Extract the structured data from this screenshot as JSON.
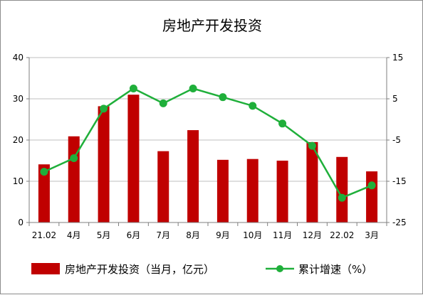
{
  "colors": {
    "bar": "#C00000",
    "line": "#1FAF3A",
    "grid": "#BFBFBF",
    "axis": "#7F7F7F"
  },
  "chart_data": {
    "type": "bar",
    "title": "房地产开发投资",
    "categories": [
      "21.02",
      "4月",
      "5月",
      "6月",
      "7月",
      "8月",
      "9月",
      "10月",
      "11月",
      "12月",
      "22.02",
      "3月"
    ],
    "series": [
      {
        "name": "房地产开发投资（当月，亿元）",
        "type": "bar",
        "axis": "left",
        "values": [
          14.1,
          20.9,
          28.2,
          31.0,
          17.3,
          22.4,
          15.2,
          15.4,
          15.0,
          19.5,
          15.9,
          12.4
        ]
      },
      {
        "name": "累计增速（%）",
        "type": "line",
        "axis": "right",
        "values": [
          -12.7,
          -9.4,
          2.6,
          7.5,
          3.9,
          7.5,
          5.4,
          3.3,
          -1.0,
          -6.4,
          -19.0,
          -16.0
        ]
      }
    ],
    "y_left": {
      "min": 0,
      "max": 40,
      "ticks": [
        0,
        10,
        20,
        30,
        40
      ]
    },
    "y_right": {
      "min": -25,
      "max": 15,
      "ticks": [
        -25,
        -15,
        -5,
        5,
        15
      ]
    },
    "grid": true,
    "legend_position": "bottom"
  }
}
